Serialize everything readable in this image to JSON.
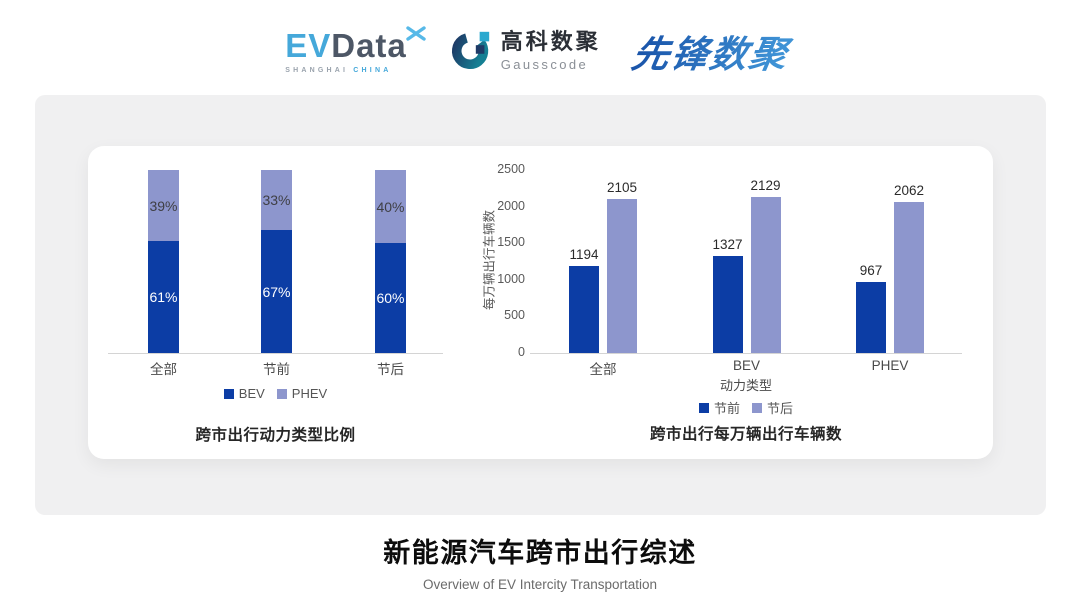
{
  "header": {
    "evdata": {
      "ev": "EV",
      "data": "Data",
      "sub_left": "SHANGHAI",
      "sub_right": "CHINA"
    },
    "gausscode": {
      "cn": "高科数聚",
      "en": "Gausscode"
    },
    "pioneer": {
      "text": "先锋数聚"
    }
  },
  "colors": {
    "series_dark_blue": "#0c3da5",
    "series_light_blue": "#8d96cd",
    "card_background": "#f0f0f1",
    "brand_light_blue": "#45a8da",
    "brand_slate": "#4d5766"
  },
  "chart_data": [
    {
      "type": "bar",
      "variant": "stacked-percent",
      "title": "跨市出行动力类型比例",
      "categories": [
        "全部",
        "节前",
        "节后"
      ],
      "series": [
        {
          "name": "BEV",
          "color": "#0c3da5",
          "values": [
            61,
            67,
            60
          ],
          "labels": [
            "61%",
            "67%",
            "60%"
          ]
        },
        {
          "name": "PHEV",
          "color": "#8d96cd",
          "values": [
            39,
            33,
            40
          ],
          "labels": [
            "39%",
            "33%",
            "40%"
          ]
        }
      ],
      "legend_position": "bottom",
      "ylim": [
        0,
        100
      ],
      "grid": false
    },
    {
      "type": "bar",
      "variant": "grouped",
      "title": "跨市出行每万辆出行车辆数",
      "xlabel": "动力类型",
      "ylabel": "每万辆出行车辆数",
      "categories": [
        "全部",
        "BEV",
        "PHEV"
      ],
      "series": [
        {
          "name": "节前",
          "color": "#0c3da5",
          "values": [
            1194,
            1327,
            967
          ]
        },
        {
          "name": "节后",
          "color": "#8d96cd",
          "values": [
            2105,
            2129,
            2062
          ]
        }
      ],
      "yticks": [
        0,
        500,
        1000,
        1500,
        2000,
        2500
      ],
      "ylim": [
        0,
        2500
      ],
      "legend_position": "bottom",
      "grid": false
    }
  ],
  "footer": {
    "title": "新能源汽车跨市出行综述",
    "subtitle": "Overview of EV Intercity Transportation"
  }
}
